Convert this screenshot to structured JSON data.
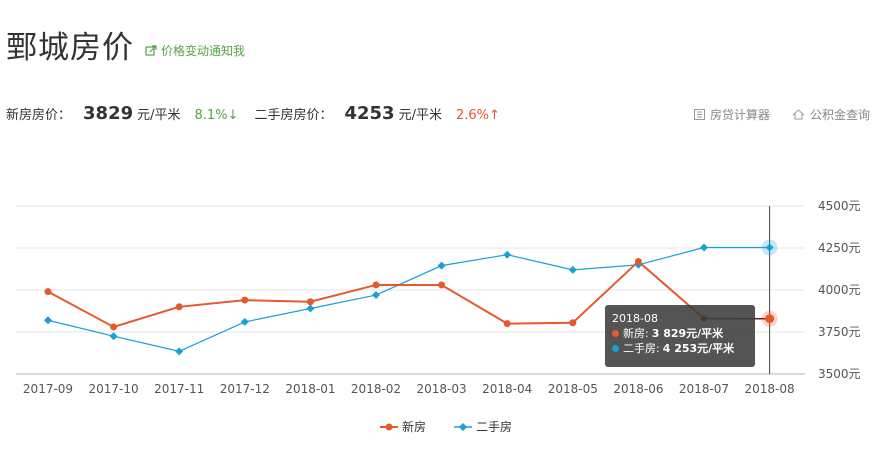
{
  "header": {
    "title": "鄄城房价",
    "notify_label": "价格变动通知我"
  },
  "prices": {
    "new_label": "新房房价：",
    "new_value": "3829",
    "new_unit": "元/平米",
    "new_change": "8.1%↓",
    "second_label": "二手房房价：",
    "second_value": "4253",
    "second_unit": "元/平米",
    "second_change": "2.6%↑"
  },
  "tools": {
    "loan_calc": "房贷计算器",
    "fund_query": "公积金查询"
  },
  "colors": {
    "new": "#e5592f",
    "second": "#1aa0d8",
    "up": "#e5592f",
    "down": "#56a543",
    "grid": "#e5e5e5",
    "axis_text": "#555555"
  },
  "legend": {
    "new": "新房",
    "second": "二手房"
  },
  "tooltip": {
    "title": "2018-08",
    "new_label": "新房:",
    "new_value": "3 829元/平米",
    "second_label": "二手房:",
    "second_value": "4 253元/平米"
  },
  "chart_data": {
    "type": "line",
    "categories": [
      "2017-09",
      "2017-10",
      "2017-11",
      "2017-12",
      "2018-01",
      "2018-02",
      "2018-03",
      "2018-04",
      "2018-05",
      "2018-06",
      "2018-07",
      "2018-08"
    ],
    "series": [
      {
        "name": "新房",
        "values": [
          3990,
          3780,
          3900,
          3940,
          3930,
          4030,
          4030,
          3800,
          3805,
          4170,
          3830,
          3829
        ]
      },
      {
        "name": "二手房",
        "values": [
          3820,
          3725,
          3635,
          3810,
          3890,
          3970,
          4145,
          4210,
          4120,
          4150,
          4253,
          4253
        ]
      }
    ],
    "ylim": [
      3500,
      4500
    ],
    "yticks": [
      3500,
      3750,
      4000,
      4250,
      4500
    ],
    "ytick_labels": [
      "3500元",
      "3750元",
      "4000元",
      "4250元",
      "4500元"
    ],
    "highlight_index": 11,
    "grid": true,
    "legend_position": "bottom-center"
  }
}
